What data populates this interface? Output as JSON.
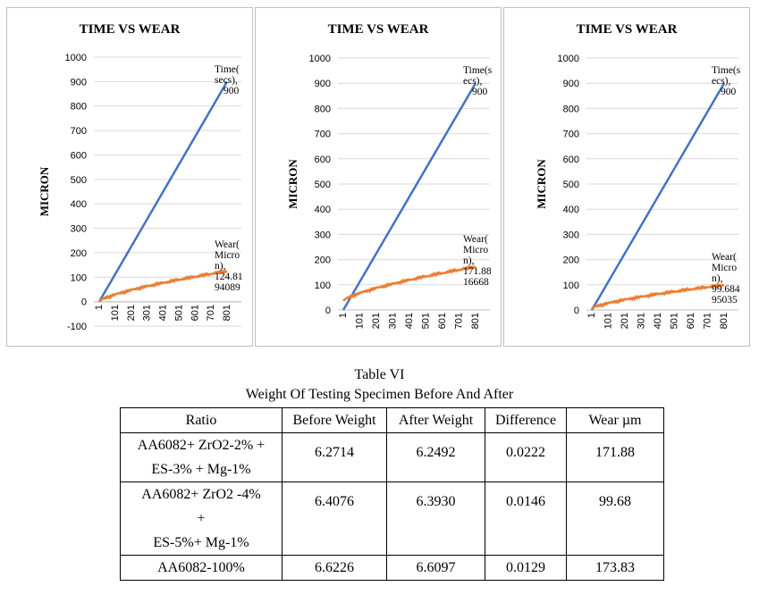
{
  "charts": [
    {
      "type": "line",
      "title": "TIME VS WEAR",
      "ylabel": "MICRON",
      "ylim": [
        -100,
        1000
      ],
      "yticks": [
        "-100",
        "0",
        "100",
        "200",
        "300",
        "400",
        "500",
        "600",
        "700",
        "800",
        "900",
        "1000"
      ],
      "xticks": [
        "1",
        "101",
        "201",
        "301",
        "401",
        "501",
        "601",
        "701",
        "801"
      ],
      "colors": {
        "time": "#4472C4",
        "wear": "#ED7D31"
      },
      "series": [
        {
          "name": "Time(secs)",
          "start": 0,
          "end": 900
        },
        {
          "name": "Wear(Micron)",
          "start": 0,
          "end": 124.8194089
        }
      ],
      "time_label": [
        "Time(",
        "secs),",
        "900"
      ],
      "wear_label": [
        "Wear(",
        "Micro",
        "n),",
        "124.81",
        "94089"
      ]
    },
    {
      "type": "line",
      "title": "TIME VS WEAR",
      "ylabel": "MICRON",
      "ylim": [
        0,
        1000
      ],
      "yticks": [
        "0",
        "100",
        "200",
        "300",
        "400",
        "500",
        "600",
        "700",
        "800",
        "900",
        "1000"
      ],
      "xticks": [
        "1",
        "101",
        "201",
        "301",
        "401",
        "501",
        "601",
        "701",
        "801"
      ],
      "colors": {
        "time": "#4472C4",
        "wear": "#ED7D31"
      },
      "series": [
        {
          "name": "Time(secs)",
          "start": 0,
          "end": 900
        },
        {
          "name": "Wear(Micron)",
          "start": 35,
          "end": 171.8816668
        }
      ],
      "time_label": [
        "Time(s",
        "ecs),",
        "900"
      ],
      "wear_label": [
        "Wear(",
        "Micro",
        "n),",
        "171.88",
        "16668"
      ]
    },
    {
      "type": "line",
      "title": "TIME VS WEAR",
      "ylabel": "MICRON",
      "ylim": [
        0,
        1000
      ],
      "yticks": [
        "0",
        "100",
        "200",
        "300",
        "400",
        "500",
        "600",
        "700",
        "800",
        "900",
        "1000"
      ],
      "xticks": [
        "1",
        "101",
        "201",
        "301",
        "401",
        "501",
        "601",
        "701",
        "801"
      ],
      "colors": {
        "time": "#4472C4",
        "wear": "#ED7D31"
      },
      "series": [
        {
          "name": "Time(secs)",
          "start": 0,
          "end": 900
        },
        {
          "name": "Wear(Micron)",
          "start": 5,
          "end": 99.68495035
        }
      ],
      "time_label": [
        "Time(s",
        "ecs),",
        "900"
      ],
      "wear_label": [
        "Wear(",
        "Micro",
        "n),",
        "99.684",
        "95035"
      ]
    }
  ],
  "table": {
    "caption_line1": "Table VI",
    "caption_line2": "Weight Of Testing Specimen Before And After",
    "headers": [
      "Ratio",
      "Before Weight",
      "After Weight",
      "Difference",
      "Wear µm"
    ],
    "rows": [
      {
        "ratio_lines": [
          "AA6082+ ZrO2-2% +",
          "ES-3% + Mg-1%"
        ],
        "before": "6.2714",
        "after": "6.2492",
        "difference": "0.0222",
        "wear": "171.88"
      },
      {
        "ratio_lines": [
          "AA6082+ ZrO2 -4%",
          "+",
          "ES-5%+ Mg-1%"
        ],
        "before": "6.4076",
        "after": "6.3930",
        "difference": "0.0146",
        "wear": "99.68"
      },
      {
        "ratio_lines": [
          "AA6082-100%"
        ],
        "before": "6.6226",
        "after": "6.6097",
        "difference": "0.0129",
        "wear": "173.83"
      }
    ]
  }
}
